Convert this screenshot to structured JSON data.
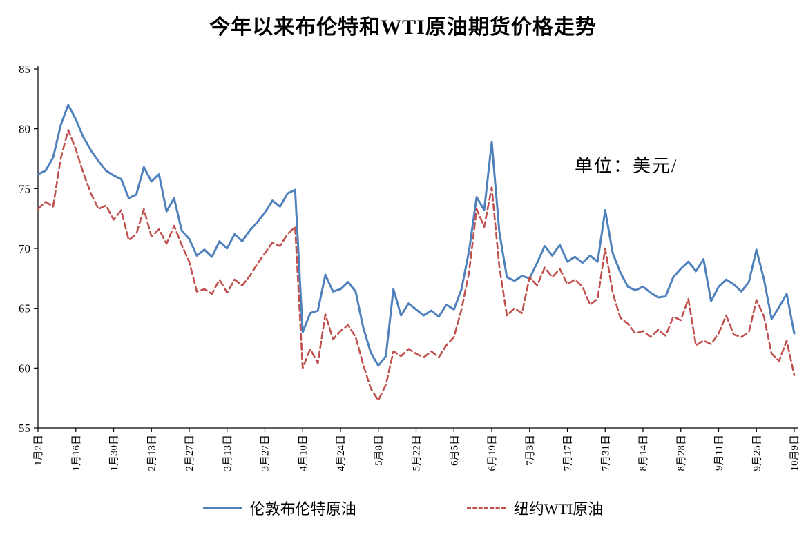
{
  "page": {
    "background": "#ffffff"
  },
  "chart_data": {
    "type": "line",
    "title": "今年以来布伦特和WTI原油期货价格走势",
    "unit_label": "单位：美元/",
    "grid": false,
    "legend_position": "bottom",
    "ylim": [
      55,
      85
    ],
    "yticks": [
      55,
      60,
      65,
      70,
      75,
      80,
      85
    ],
    "x_tick_labels": [
      "1月2日",
      "1月16日",
      "1月30日",
      "2月13日",
      "2月27日",
      "3月13日",
      "3月27日",
      "4月10日",
      "4月24日",
      "5月8日",
      "5月22日",
      "6月5日",
      "6月19日",
      "7月3日",
      "7月17日",
      "7月31日",
      "8月14日",
      "8月28日",
      "9月11日",
      "9月25日",
      "10月9日"
    ],
    "series": [
      {
        "name": "伦敦布伦特原油",
        "color": "#4F81BD",
        "style": "solid",
        "values": [
          76.2,
          76.5,
          77.6,
          80.3,
          82.0,
          80.8,
          79.3,
          78.2,
          77.3,
          76.5,
          76.1,
          75.8,
          74.2,
          74.5,
          76.8,
          75.6,
          76.2,
          73.1,
          74.2,
          71.5,
          70.8,
          69.4,
          69.9,
          69.3,
          70.6,
          70.0,
          71.2,
          70.6,
          71.5,
          72.2,
          73.0,
          74.0,
          73.5,
          74.6,
          74.9,
          63.0,
          64.6,
          64.8,
          67.8,
          66.4,
          66.6,
          67.2,
          66.4,
          63.4,
          61.3,
          60.2,
          61.0,
          66.6,
          64.4,
          65.4,
          64.9,
          64.4,
          64.8,
          64.3,
          65.3,
          64.9,
          66.6,
          69.8,
          74.3,
          73.2,
          78.9,
          71.4,
          67.6,
          67.3,
          67.7,
          67.5,
          68.8,
          70.2,
          69.4,
          70.3,
          68.9,
          69.3,
          68.8,
          69.4,
          68.9,
          73.2,
          69.6,
          68.0,
          66.8,
          66.5,
          66.8,
          66.3,
          65.9,
          66.0,
          67.6,
          68.3,
          68.9,
          68.1,
          69.1,
          65.6,
          66.8,
          67.4,
          67.0,
          66.4,
          67.2,
          69.9,
          67.4,
          64.1,
          65.1,
          66.2,
          62.9
        ]
      },
      {
        "name": "纽约WTI原油",
        "color": "#C0504D",
        "style": "dashed",
        "values": [
          73.3,
          73.9,
          73.5,
          77.5,
          79.9,
          78.3,
          76.3,
          74.6,
          73.3,
          73.6,
          72.4,
          73.2,
          70.7,
          71.2,
          73.3,
          71.0,
          71.6,
          70.4,
          71.9,
          70.3,
          68.9,
          66.4,
          66.6,
          66.2,
          67.4,
          66.3,
          67.4,
          66.9,
          67.7,
          68.7,
          69.6,
          70.5,
          70.2,
          71.2,
          71.8,
          60.0,
          61.6,
          60.4,
          64.5,
          62.4,
          63.1,
          63.6,
          62.6,
          60.3,
          58.3,
          57.3,
          58.6,
          61.4,
          61.0,
          61.6,
          61.2,
          60.9,
          61.4,
          60.9,
          61.9,
          62.6,
          64.9,
          68.0,
          73.3,
          71.8,
          75.1,
          68.5,
          64.4,
          65.0,
          64.6,
          67.6,
          66.9,
          68.4,
          67.6,
          68.3,
          67.0,
          67.4,
          66.8,
          65.3,
          65.8,
          70.0,
          66.3,
          64.2,
          63.7,
          62.9,
          63.1,
          62.6,
          63.2,
          62.7,
          64.3,
          64.0,
          65.8,
          61.9,
          62.3,
          62.0,
          62.9,
          64.4,
          62.8,
          62.6,
          63.0,
          65.7,
          64.3,
          61.2,
          60.6,
          62.3,
          59.4
        ]
      }
    ]
  }
}
